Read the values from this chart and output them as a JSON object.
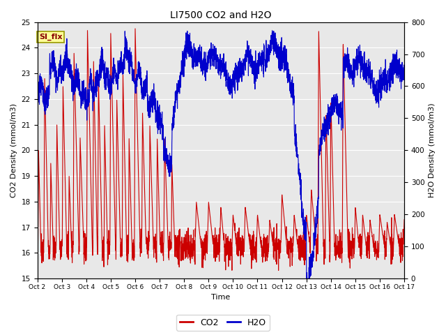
{
  "title": "LI7500 CO2 and H2O",
  "xlabel": "Time",
  "ylabel_left": "CO2 Density (mmol/m3)",
  "ylabel_right": "H2O Density (mmol/m3)",
  "ylim_left": [
    15.0,
    25.0
  ],
  "ylim_right": [
    0,
    800
  ],
  "annotation_text": "SI_flx",
  "annotation_bg": "#ffff99",
  "annotation_border": "#888800",
  "x_tick_labels": [
    "Oct 2",
    "Oct 3",
    "Oct 4",
    "Oct 5",
    "Oct 6",
    "Oct 7",
    "Oct 8",
    "Oct 9",
    "Oct 10",
    "Oct 11",
    "Oct 12",
    "Oct 13",
    "Oct 14",
    "Oct 15",
    "Oct 16",
    "Oct 17"
  ],
  "co2_color": "#cc0000",
  "h2o_color": "#0000cc",
  "legend_co2": "CO2",
  "legend_h2o": "H2O",
  "bg_color": "#e8e8e8",
  "fig_bg": "#ffffff",
  "linewidth": 0.8,
  "seed": 42,
  "n_points": 3000
}
